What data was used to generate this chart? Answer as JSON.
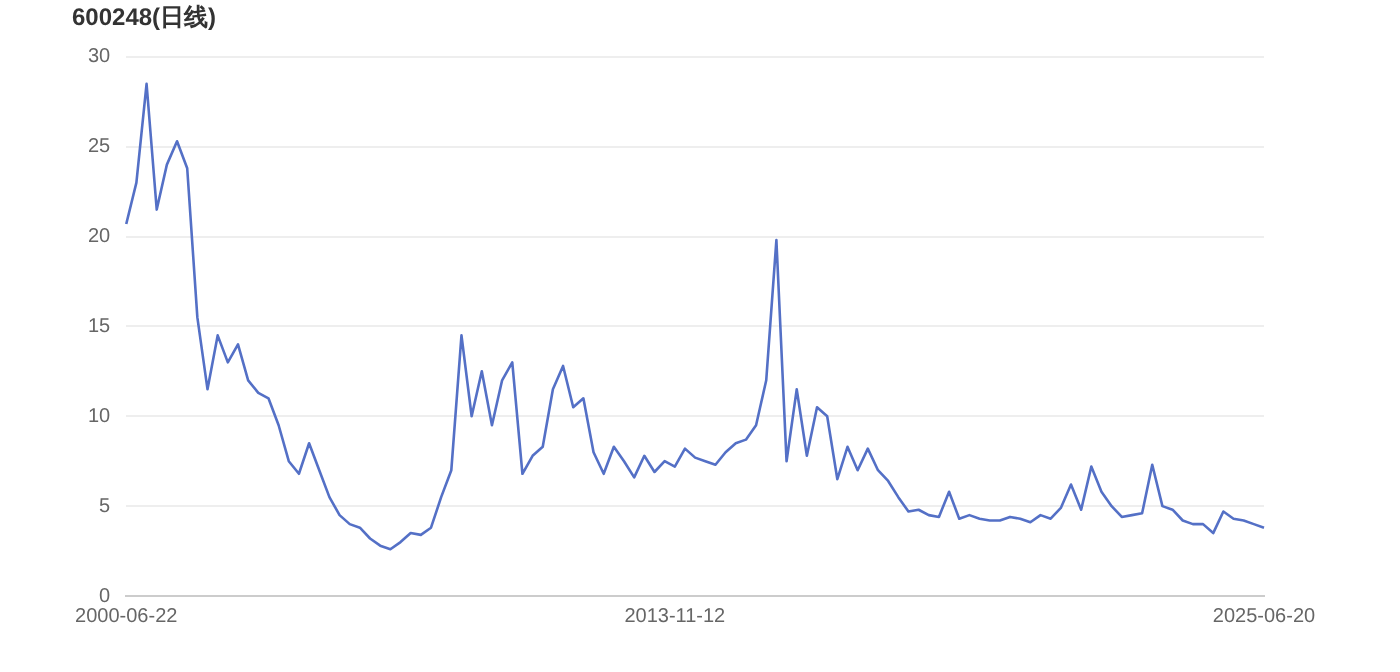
{
  "chart_data": {
    "type": "line",
    "title": "600248(日线)",
    "categories": [
      "2000-06-22",
      null,
      null,
      null,
      null,
      null,
      null,
      null,
      null,
      null,
      null,
      null,
      null,
      null,
      null,
      null,
      null,
      null,
      null,
      null,
      null,
      null,
      null,
      null,
      null,
      null,
      null,
      null,
      null,
      null,
      null,
      null,
      null,
      null,
      null,
      null,
      null,
      null,
      null,
      null,
      null,
      null,
      null,
      null,
      null,
      null,
      null,
      null,
      null,
      null,
      null,
      null,
      null,
      null,
      "2013-11-12",
      null,
      null,
      null,
      null,
      null,
      null,
      null,
      null,
      null,
      null,
      null,
      null,
      null,
      null,
      null,
      null,
      null,
      null,
      null,
      null,
      null,
      null,
      null,
      null,
      null,
      null,
      null,
      null,
      null,
      null,
      null,
      null,
      null,
      null,
      null,
      null,
      null,
      null,
      null,
      null,
      null,
      null,
      null,
      null,
      null,
      null,
      null,
      null,
      null,
      null,
      null,
      null,
      null,
      null,
      null,
      null,
      null,
      "2025-06-20"
    ],
    "series": [
      {
        "color": "#5470c6",
        "values": [
          20.7,
          23.0,
          28.5,
          21.5,
          24.0,
          25.3,
          23.8,
          15.5,
          11.5,
          14.5,
          13.0,
          14.0,
          12.0,
          11.3,
          11.0,
          9.5,
          7.5,
          6.8,
          8.5,
          7.0,
          5.5,
          4.5,
          4.0,
          3.8,
          3.2,
          2.8,
          2.6,
          3.0,
          3.5,
          3.4,
          3.8,
          5.5,
          7.0,
          14.5,
          10.0,
          12.5,
          9.5,
          12.0,
          13.0,
          6.8,
          7.8,
          8.3,
          11.5,
          12.8,
          10.5,
          11.0,
          8.0,
          6.8,
          8.3,
          7.5,
          6.6,
          7.8,
          6.9,
          7.5,
          7.2,
          8.2,
          7.7,
          7.5,
          7.3,
          8.0,
          8.5,
          8.7,
          9.5,
          12.0,
          19.8,
          7.5,
          11.5,
          7.8,
          10.5,
          10.0,
          6.5,
          8.3,
          7.0,
          8.2,
          7.0,
          6.4,
          5.5,
          4.7,
          4.8,
          4.5,
          4.4,
          5.8,
          4.3,
          4.5,
          4.3,
          4.2,
          4.2,
          4.4,
          4.3,
          4.1,
          4.5,
          4.3,
          4.9,
          6.2,
          4.8,
          7.2,
          5.8,
          5.0,
          4.4,
          4.5,
          4.6,
          7.3,
          5.0,
          4.8,
          4.2,
          4.0,
          4.0,
          3.5,
          4.7,
          4.3,
          4.2,
          4.0,
          3.8
        ]
      }
    ],
    "ylim": [
      0,
      30
    ],
    "yticks": [
      0,
      5,
      10,
      15,
      20,
      25,
      30
    ],
    "grid": "y",
    "legend": false,
    "marker": "none",
    "line_style": "solid"
  }
}
